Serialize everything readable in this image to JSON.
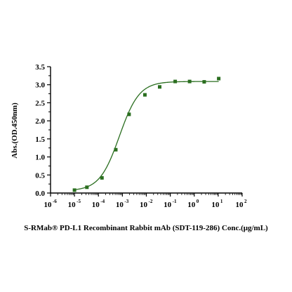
{
  "chart_data": {
    "type": "scatter",
    "title": "",
    "xlabel": "S-RMab® PD-L1 Recombinant Rabbit mAb (SDT-119-286)   Conc.(μg/mL)",
    "ylabel": "Abs.(OD.450nm)",
    "x_scale": "log",
    "xlim": [
      1e-06,
      100
    ],
    "ylim": [
      0,
      3.5
    ],
    "x_ticks": [
      {
        "base": "10",
        "exp": "-6"
      },
      {
        "base": "10",
        "exp": "-5"
      },
      {
        "base": "10",
        "exp": "-4"
      },
      {
        "base": "10",
        "exp": "-3"
      },
      {
        "base": "10",
        "exp": "-2"
      },
      {
        "base": "10",
        "exp": "-1"
      },
      {
        "base": "10",
        "exp": "0"
      },
      {
        "base": "10",
        "exp": "1"
      },
      {
        "base": "10",
        "exp": "2"
      }
    ],
    "y_ticks": [
      "0.0",
      "0.5",
      "1.0",
      "1.5",
      "2.0",
      "2.5",
      "3.0",
      "3.5"
    ],
    "grid": false,
    "color": "#2a6e1f",
    "series": [
      {
        "name": "",
        "x": [
          1e-05,
          3.3e-05,
          0.00014,
          0.00053,
          0.0019,
          0.0087,
          0.036,
          0.16,
          0.64,
          2.6,
          10.5
        ],
        "y": [
          0.08,
          0.16,
          0.42,
          1.2,
          2.18,
          2.72,
          2.94,
          3.09,
          3.09,
          3.08,
          3.17
        ]
      }
    ],
    "fit": {
      "type": "4PL",
      "bottom": 0.06,
      "top": 3.09,
      "ec50": 0.00075,
      "hill": 1.05
    }
  }
}
